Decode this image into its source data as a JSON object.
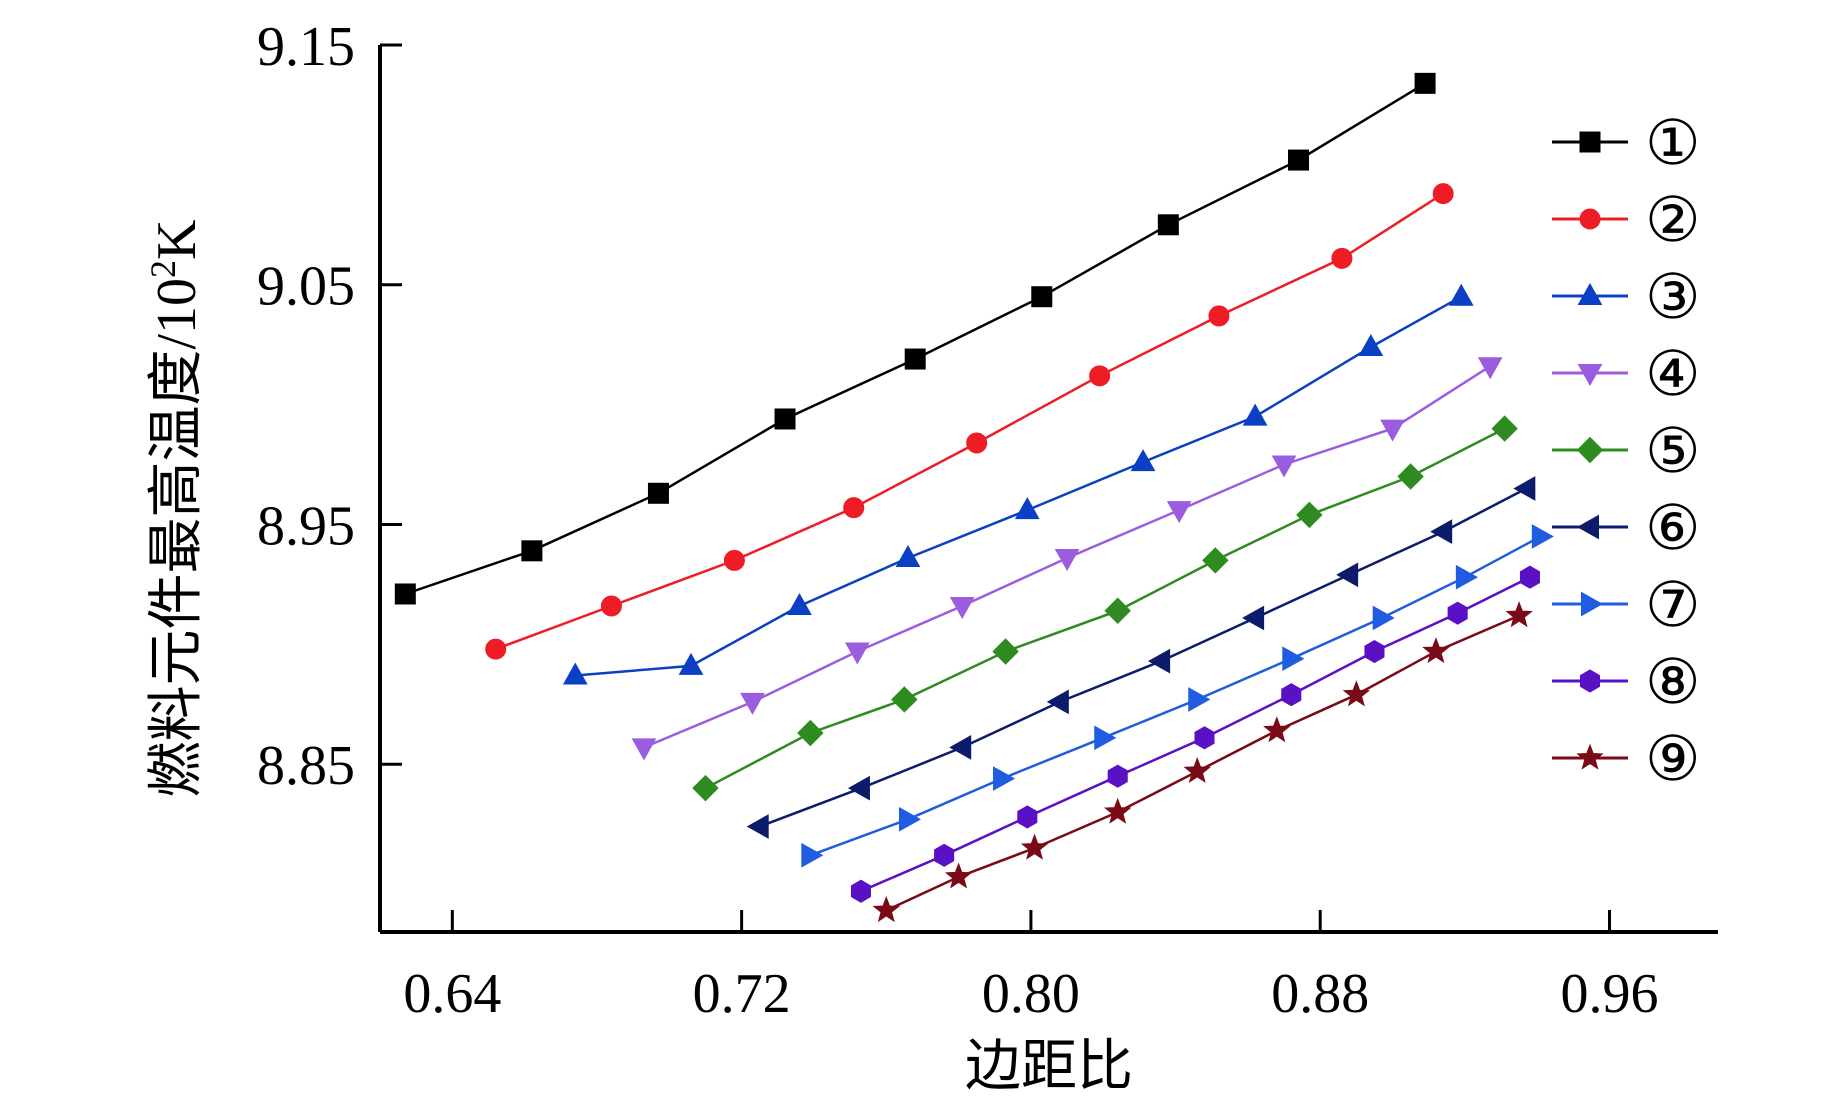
{
  "chart_data": {
    "type": "line",
    "xlabel": "边距比",
    "ylabel": "燃料元件最高温度/10",
    "ylabel_sup": "2",
    "ylabel_unit": "K",
    "xlim": [
      0.62,
      0.99
    ],
    "ylim": [
      8.78,
      9.15
    ],
    "xticks": [
      "0.64",
      "0.72",
      "0.80",
      "0.88",
      "0.96"
    ],
    "yticks": [
      "8.85",
      "8.95",
      "9.05",
      "9.15"
    ],
    "legend_position": "right",
    "series": [
      {
        "name": "①",
        "color": "#000000",
        "marker": "square",
        "x": [
          0.627,
          0.662,
          0.697,
          0.732,
          0.768,
          0.803,
          0.838,
          0.874,
          0.909
        ],
        "y": [
          8.921,
          8.939,
          8.963,
          8.994,
          9.019,
          9.045,
          9.075,
          9.102,
          9.134
        ]
      },
      {
        "name": "②",
        "color": "#ee1c24",
        "marker": "circle",
        "x": [
          0.652,
          0.684,
          0.718,
          0.751,
          0.785,
          0.819,
          0.852,
          0.886,
          0.914
        ],
        "y": [
          8.898,
          8.916,
          8.935,
          8.957,
          8.984,
          9.012,
          9.037,
          9.061,
          9.088
        ]
      },
      {
        "name": "③",
        "color": "#0b3fc4",
        "marker": "triangle-up",
        "x": [
          0.674,
          0.706,
          0.736,
          0.766,
          0.799,
          0.831,
          0.862,
          0.894,
          0.919
        ],
        "y": [
          8.887,
          8.891,
          8.916,
          8.936,
          8.956,
          8.976,
          8.995,
          9.024,
          9.045
        ]
      },
      {
        "name": "④",
        "color": "#9b5ce0",
        "marker": "triangle-down",
        "x": [
          0.693,
          0.723,
          0.752,
          0.781,
          0.81,
          0.841,
          0.87,
          0.9,
          0.927
        ],
        "y": [
          8.857,
          8.876,
          8.897,
          8.916,
          8.936,
          8.956,
          8.975,
          8.99,
          9.016
        ]
      },
      {
        "name": "⑤",
        "color": "#2e8b1f",
        "marker": "diamond",
        "x": [
          0.71,
          0.739,
          0.765,
          0.793,
          0.824,
          0.851,
          0.877,
          0.905,
          0.931
        ],
        "y": [
          8.84,
          8.863,
          8.877,
          8.897,
          8.914,
          8.935,
          8.954,
          8.97,
          8.99
        ]
      },
      {
        "name": "⑥",
        "color": "#0c1c6b",
        "marker": "triangle-left",
        "x": [
          0.725,
          0.753,
          0.781,
          0.808,
          0.836,
          0.862,
          0.888,
          0.914,
          0.937
        ],
        "y": [
          8.824,
          8.84,
          8.857,
          8.876,
          8.893,
          8.911,
          8.929,
          8.947,
          8.965
        ]
      },
      {
        "name": "⑦",
        "color": "#1f5ce0",
        "marker": "triangle-right",
        "x": [
          0.739,
          0.766,
          0.792,
          0.82,
          0.846,
          0.872,
          0.897,
          0.92,
          0.941
        ],
        "y": [
          8.812,
          8.827,
          8.844,
          8.861,
          8.877,
          8.894,
          8.911,
          8.928,
          8.945
        ]
      },
      {
        "name": "⑧",
        "color": "#5a10c4",
        "marker": "hexagon",
        "x": [
          0.753,
          0.776,
          0.799,
          0.824,
          0.848,
          0.872,
          0.895,
          0.918,
          0.938
        ],
        "y": [
          8.797,
          8.812,
          8.828,
          8.845,
          8.861,
          8.879,
          8.897,
          8.913,
          8.928
        ]
      },
      {
        "name": "⑨",
        "color": "#7a0a16",
        "marker": "star",
        "x": [
          0.76,
          0.78,
          0.801,
          0.824,
          0.846,
          0.868,
          0.89,
          0.912,
          0.935
        ],
        "y": [
          8.789,
          8.803,
          8.815,
          8.83,
          8.847,
          8.864,
          8.879,
          8.897,
          8.912
        ]
      }
    ]
  }
}
